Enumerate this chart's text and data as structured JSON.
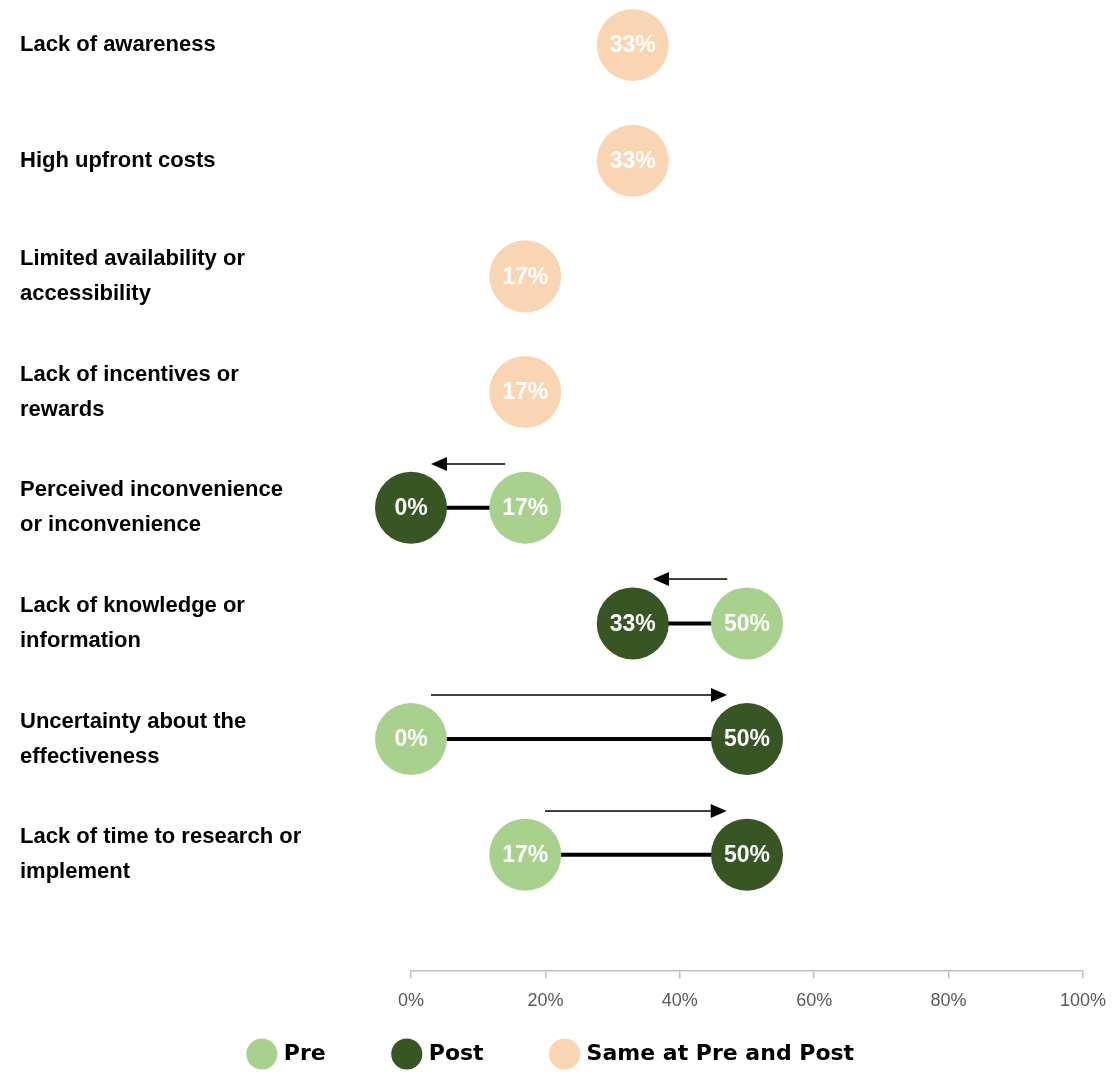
{
  "chart_data": {
    "type": "scatter",
    "orientation": "horizontal",
    "categories": [
      "Lack of awareness",
      "High upfront costs",
      "Limited availability or accessibility",
      "Lack of incentives or rewards",
      "Perceived inconvenience or inconvenience",
      "Lack of knowledge or information",
      "Uncertainty about the effectiveness",
      "Lack of time to research or implement"
    ],
    "series": [
      {
        "name": "Pre",
        "color": "#a9d18e",
        "values": [
          null,
          null,
          null,
          null,
          17,
          50,
          0,
          17
        ],
        "value_labels": [
          null,
          null,
          null,
          null,
          "17%",
          "50%",
          "0%",
          "17%"
        ]
      },
      {
        "name": "Post",
        "color": "#375623",
        "values": [
          null,
          null,
          null,
          null,
          0,
          33,
          50,
          50
        ],
        "value_labels": [
          null,
          null,
          null,
          null,
          "0%",
          "33%",
          "50%",
          "50%"
        ]
      },
      {
        "name": "Same at Pre and Post",
        "color": "#fad5b4",
        "values": [
          33,
          33,
          17,
          17,
          null,
          null,
          null,
          null
        ],
        "value_labels": [
          "33%",
          "33%",
          "17%",
          "17%",
          null,
          null,
          null,
          null
        ]
      }
    ],
    "xlim": [
      0,
      100
    ],
    "xticks": [
      {
        "value": 0,
        "label": "0%"
      },
      {
        "value": 20,
        "label": "20%"
      },
      {
        "value": 40,
        "label": "40%"
      },
      {
        "value": 60,
        "label": "60%"
      },
      {
        "value": 80,
        "label": "80%"
      },
      {
        "value": 100,
        "label": "100%"
      }
    ],
    "grid": false,
    "legend": "bottom",
    "marker": "circle"
  }
}
